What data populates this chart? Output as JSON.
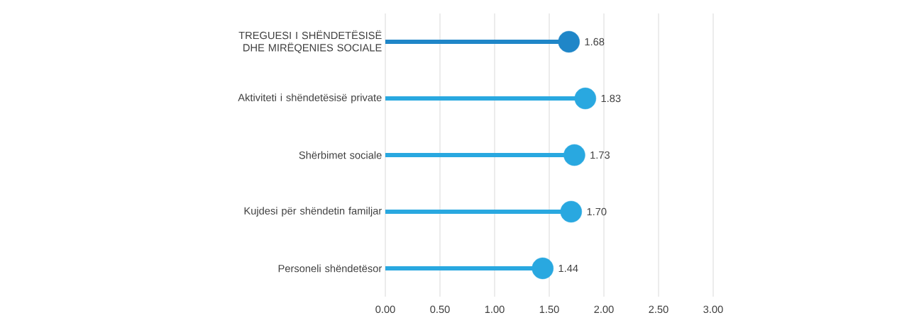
{
  "chart_data": {
    "type": "lollipop",
    "orientation": "horizontal",
    "categories": [
      "TREGUESI I SHËNDETËSISË DHE MIRËQENIES SOCIALE",
      "Aktiviteti i shëndetësisë private",
      "Shërbimet sociale",
      "Kujdesi për shëndetin familjar",
      "Personeli shëndetësor"
    ],
    "values": [
      1.68,
      1.83,
      1.73,
      1.7,
      1.44
    ],
    "value_labels": [
      "1.68",
      "1.83",
      "1.73",
      "1.70",
      "1.44"
    ],
    "colors": [
      "#1f86c8",
      "#29a8e0",
      "#29a8e0",
      "#29a8e0",
      "#29a8e0"
    ],
    "xlim": [
      0,
      3
    ],
    "xticks": [
      {
        "value": 0,
        "label": "0.00"
      },
      {
        "value": 0.5,
        "label": "0.50"
      },
      {
        "value": 1,
        "label": "1.00"
      },
      {
        "value": 1.5,
        "label": "1.50"
      },
      {
        "value": 2,
        "label": "2.00"
      },
      {
        "value": 2.5,
        "label": "2.50"
      },
      {
        "value": 3,
        "label": "3.00"
      }
    ],
    "grid": "x",
    "marker": "circle"
  }
}
